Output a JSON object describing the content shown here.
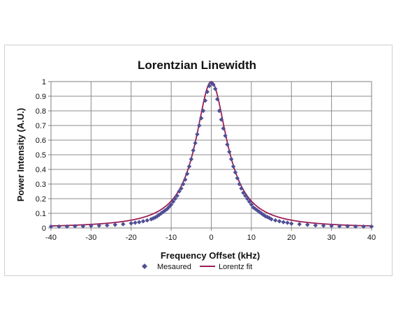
{
  "chart_data": {
    "type": "scatter",
    "title": "Lorentzian Linewidth",
    "xlabel": "Frequency Offset (kHz)",
    "ylabel": "Power Intensity (A.U.)",
    "xlim": [
      -40,
      40
    ],
    "ylim": [
      0,
      1
    ],
    "x_ticks": [
      "-40",
      "-30",
      "-20",
      "-10",
      "0",
      "10",
      "20",
      "30",
      "40"
    ],
    "y_ticks": [
      "0",
      "0.1",
      "0.2",
      "0.3",
      "0.4",
      "0.5",
      "0.6",
      "0.7",
      "0.8",
      "0.9",
      "1"
    ],
    "grid": true,
    "legend_position": "bottom",
    "series": [
      {
        "name": "Mesaured",
        "kind": "markers",
        "marker": "diamond",
        "color": "#4f4f96",
        "x": [
          -40,
          -38,
          -36,
          -34,
          -32,
          -30,
          -28,
          -26,
          -24,
          -22,
          -20,
          -19,
          -18,
          -17,
          -16,
          -15,
          -14.5,
          -14,
          -13.5,
          -13,
          -12.5,
          -12,
          -11.5,
          -11,
          -10.5,
          -10,
          -9.5,
          -9,
          -8.5,
          -8,
          -7.5,
          -7,
          -6.5,
          -6,
          -5.5,
          -5,
          -4.5,
          -4,
          -3.5,
          -3,
          -2.5,
          -2,
          -1.5,
          -1,
          -0.5,
          0,
          0.5,
          1,
          1.5,
          2,
          2.5,
          3,
          3.5,
          4,
          4.5,
          5,
          5.5,
          6,
          6.5,
          7,
          7.5,
          8,
          8.5,
          9,
          9.5,
          10,
          10.5,
          11,
          11.5,
          12,
          12.5,
          13,
          13.5,
          14,
          14.5,
          15,
          16,
          17,
          18,
          19,
          20,
          22,
          24,
          26,
          28,
          30,
          32,
          34,
          36,
          38,
          40
        ],
        "y": [
          0.01,
          0.01,
          0.01,
          0.012,
          0.012,
          0.014,
          0.016,
          0.018,
          0.022,
          0.026,
          0.032,
          0.036,
          0.04,
          0.046,
          0.052,
          0.06,
          0.066,
          0.072,
          0.08,
          0.09,
          0.1,
          0.11,
          0.12,
          0.13,
          0.145,
          0.16,
          0.18,
          0.2,
          0.22,
          0.25,
          0.27,
          0.3,
          0.33,
          0.37,
          0.42,
          0.47,
          0.53,
          0.58,
          0.64,
          0.7,
          0.75,
          0.8,
          0.87,
          0.93,
          0.97,
          0.99,
          0.98,
          0.95,
          0.88,
          0.8,
          0.74,
          0.68,
          0.63,
          0.57,
          0.52,
          0.47,
          0.42,
          0.38,
          0.34,
          0.3,
          0.27,
          0.24,
          0.22,
          0.2,
          0.18,
          0.16,
          0.14,
          0.13,
          0.12,
          0.11,
          0.1,
          0.09,
          0.08,
          0.075,
          0.068,
          0.06,
          0.052,
          0.046,
          0.04,
          0.036,
          0.03,
          0.026,
          0.022,
          0.018,
          0.016,
          0.014,
          0.012,
          0.012,
          0.01,
          0.01,
          0.01
        ]
      },
      {
        "name": "Lorentz fit",
        "kind": "line",
        "color": "#9b1f58",
        "center": 0,
        "fwhm": 9.5,
        "peak": 1
      }
    ]
  }
}
